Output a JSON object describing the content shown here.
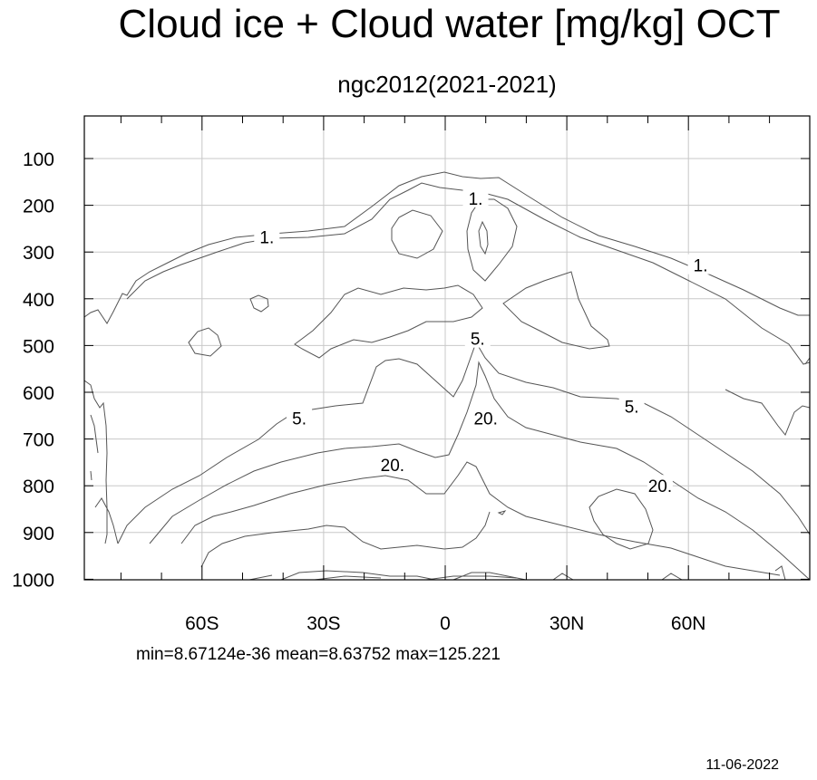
{
  "chart_data": {
    "type": "contour",
    "title": "Cloud ice + Cloud water [mg/kg] OCT",
    "subtitle": "ngc2012(2021-2021)",
    "x_tick_labels": [
      "60S",
      "30S",
      "0",
      "30N",
      "60N"
    ],
    "x_tick_values": [
      -60,
      -30,
      0,
      30,
      60
    ],
    "xlim": [
      -89,
      89
    ],
    "y_tick_labels": [
      "100",
      "200",
      "300",
      "400",
      "500",
      "600",
      "700",
      "800",
      "900",
      "1000"
    ],
    "y_tick_values": [
      100,
      200,
      300,
      400,
      500,
      600,
      700,
      800,
      900,
      1000
    ],
    "ylim": [
      10,
      1000
    ],
    "grid": true,
    "contour_labels": [
      {
        "text": "1.",
        "lat": 7.5,
        "lev": 185
      },
      {
        "text": "1.",
        "lat": -44,
        "lev": 268
      },
      {
        "text": "1.",
        "lat": 63,
        "lev": 328
      },
      {
        "text": "5.",
        "lat": 8,
        "lev": 485
      },
      {
        "text": "5.",
        "lat": -36,
        "lev": 655
      },
      {
        "text": "5.",
        "lat": 46,
        "lev": 630
      },
      {
        "text": "20.",
        "lat": -13,
        "lev": 755
      },
      {
        "text": "20.",
        "lat": 10,
        "lev": 655
      },
      {
        "text": "20.",
        "lat": 53,
        "lev": 800
      }
    ],
    "stats": "min=8.67124e-36   mean=8.63752   max=125.221",
    "date": "11-06-2022"
  }
}
